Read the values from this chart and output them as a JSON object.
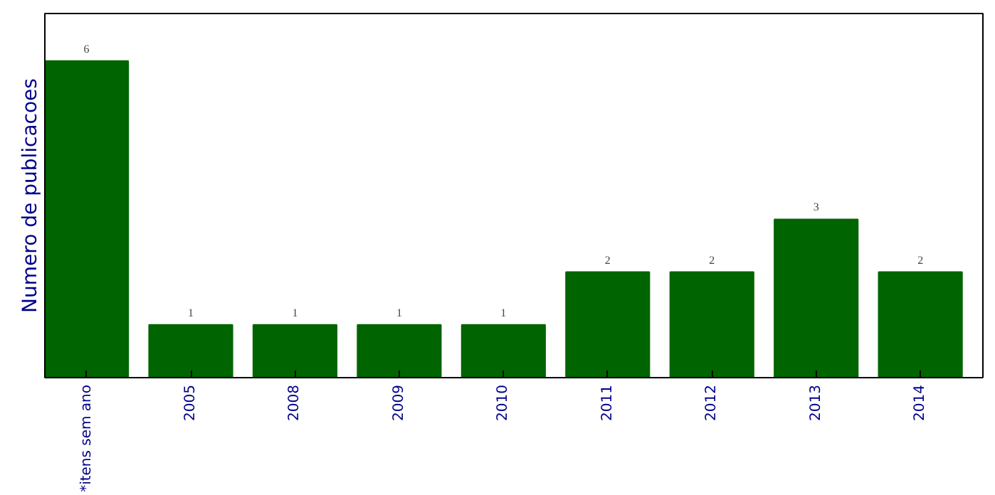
{
  "chart_data": {
    "type": "bar",
    "ylabel": "Numero de publicacoes",
    "categories": [
      "*itens sem ano",
      "2005",
      "2008",
      "2009",
      "2010",
      "2011",
      "2012",
      "2013",
      "2014"
    ],
    "values": [
      6,
      1,
      1,
      1,
      1,
      2,
      2,
      3,
      2
    ],
    "color": "#006400",
    "ylim": [
      0,
      6.9
    ],
    "data_labels": true,
    "grid": false,
    "tick_labels": "x"
  }
}
